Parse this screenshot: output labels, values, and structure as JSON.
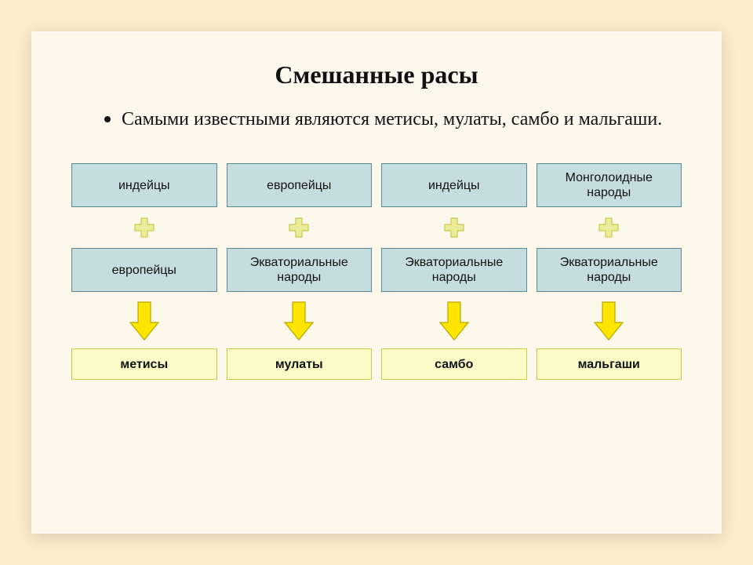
{
  "title": "Смешанные расы",
  "title_fontsize": 32,
  "bullet_text": "Самыми известными являются метисы, мулаты, самбо и мальгаши.",
  "bullet_fontsize": 24,
  "colors": {
    "page_bg": "#fdeccb",
    "slide_bg": "#fdf8ec",
    "input_fill": "#c5dde0",
    "input_border": "#5a8a90",
    "result_fill": "#fcfbc7",
    "result_border": "#c9c94c",
    "connector_fill": "#eceb9a",
    "connector_border": "#c9c94c",
    "arrow_fill": "#ffe500",
    "arrow_border": "#b8a800",
    "text": "#111111"
  },
  "box_fontsize": 16,
  "columns": [
    {
      "top": "индейцы",
      "mid": "европейцы",
      "result": "метисы"
    },
    {
      "top": "европейцы",
      "mid": "Экваториальные народы",
      "result": "мулаты"
    },
    {
      "top": "индейцы",
      "mid": "Экваториальные народы",
      "result": "самбо"
    },
    {
      "top": "Монголоидные народы",
      "mid": "Экваториальные народы",
      "result": "мальгаши"
    }
  ]
}
